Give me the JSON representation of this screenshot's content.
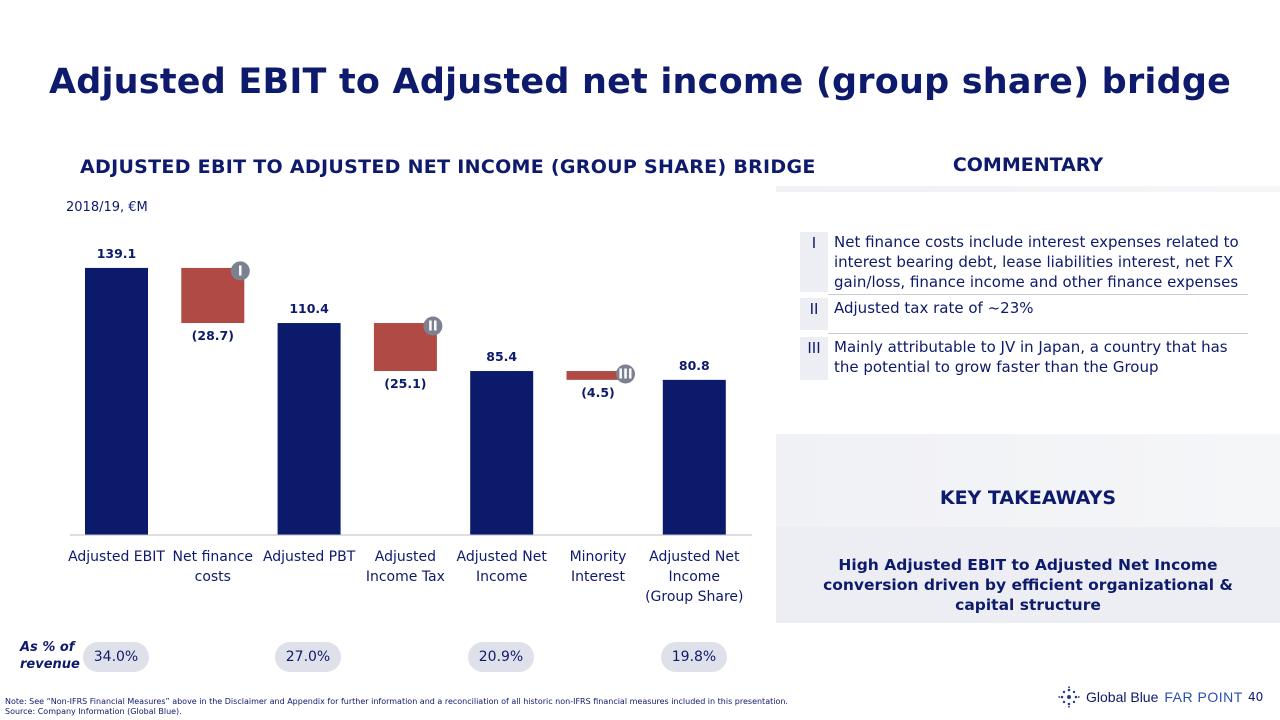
{
  "title": "Adjusted EBIT to Adjusted net income (group share) bridge",
  "chart_heading": "ADJUSTED EBIT TO ADJUSTED NET INCOME (GROUP SHARE) BRIDGE",
  "unit_label": "2018/19, €M",
  "chart_data": {
    "type": "bar",
    "subtype": "waterfall",
    "ylim": [
      0,
      150
    ],
    "categories": [
      [
        "Adjusted EBIT"
      ],
      [
        "Net finance",
        "costs"
      ],
      [
        "Adjusted PBT"
      ],
      [
        "Adjusted",
        "Income Tax"
      ],
      [
        "Adjusted Net",
        "Income"
      ],
      [
        "Minority",
        "Interest"
      ],
      [
        "Adjusted Net",
        "Income",
        "(Group Share)"
      ]
    ],
    "bars": [
      {
        "kind": "total",
        "start": 0,
        "end": 139.1,
        "label": "139.1"
      },
      {
        "kind": "delta",
        "start": 139.1,
        "end": 110.4,
        "label": "(28.7)",
        "badge": "I"
      },
      {
        "kind": "total",
        "start": 0,
        "end": 110.4,
        "label": "110.4"
      },
      {
        "kind": "delta",
        "start": 110.4,
        "end": 85.4,
        "label": "(25.1)",
        "badge": "II"
      },
      {
        "kind": "total",
        "start": 0,
        "end": 85.4,
        "label": "85.4"
      },
      {
        "kind": "delta",
        "start": 85.4,
        "end": 80.8,
        "label": "(4.5)",
        "badge": "III"
      },
      {
        "kind": "total",
        "start": 0,
        "end": 80.8,
        "label": "80.8"
      }
    ],
    "colors": {
      "total": "#0b1a6b",
      "delta": "#b04a44",
      "badge": "#7d8090"
    }
  },
  "pct_revenue": {
    "title_line1": "As % of",
    "title_line2": "revenue",
    "values": [
      "34.0%",
      "27.0%",
      "20.9%",
      "19.8%"
    ]
  },
  "commentary": {
    "heading": "COMMENTARY",
    "items": [
      {
        "roman": "I",
        "text": "Net finance costs include interest expenses related to interest bearing debt, lease liabilities interest, net FX gain/loss, finance income and other finance expenses"
      },
      {
        "roman": "II",
        "text": "Adjusted tax rate of ~23%"
      },
      {
        "roman": "III",
        "text": "Mainly attributable to JV in Japan, a country that has the potential to grow faster than the Group"
      }
    ]
  },
  "takeaways": {
    "heading": "KEY TAKEAWAYS",
    "text": "High Adjusted EBIT to Adjusted Net Income conversion driven by efficient organizational & capital structure"
  },
  "footnote": {
    "line1": "Note: See “Non-IFRS Financial Measures” above in the Disclaimer and Appendix for further information and a reconciliation of all historic non-IFRS financial measures included in this presentation.",
    "line2": "Source: Company Information (Global Blue)."
  },
  "logo": {
    "brand": "Global Blue",
    "product": "FAR POINT",
    "icon": "globe-dots-icon"
  },
  "page_number": "40"
}
